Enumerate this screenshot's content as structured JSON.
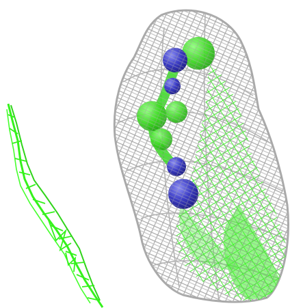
{
  "scene": {
    "background": "#ffffff",
    "colors": {
      "mesh_gray": "#a9a9a9",
      "mesh_green": "#35f21c",
      "surface_green": "#3ff12a",
      "atom_blue": "#2e2fb0",
      "atom_blue_highlight": "#7a7cf0"
    },
    "objects": [
      "green-ribbon-mesh",
      "gray-wireframe-surface",
      "green-inner-surface",
      "green-molecule",
      "blue-atoms"
    ]
  }
}
